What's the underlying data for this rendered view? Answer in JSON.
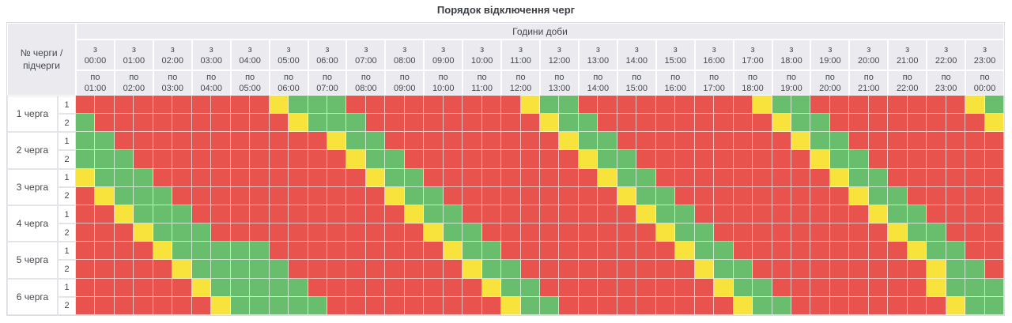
{
  "title": "Порядок відключення черг",
  "colors": {
    "red": "#e8534e",
    "green": "#68be6c",
    "yellow": "#f7e33c",
    "header_bg": "#eaeaef",
    "header_text": "#45494e",
    "table_border": "#dcdee3",
    "grid_line": "#ffffff"
  },
  "header": {
    "corner_lines": [
      "№ черги /",
      "підчерги"
    ],
    "hours_title": "Години доби",
    "from_prefix": "з",
    "to_prefix": "по",
    "columns": [
      {
        "from": "00:00",
        "to": "01:00"
      },
      {
        "from": "01:00",
        "to": "02:00"
      },
      {
        "from": "02:00",
        "to": "03:00"
      },
      {
        "from": "03:00",
        "to": "04:00"
      },
      {
        "from": "04:00",
        "to": "05:00"
      },
      {
        "from": "05:00",
        "to": "06:00"
      },
      {
        "from": "06:00",
        "to": "07:00"
      },
      {
        "from": "07:00",
        "to": "08:00"
      },
      {
        "from": "08:00",
        "to": "09:00"
      },
      {
        "from": "09:00",
        "to": "10:00"
      },
      {
        "from": "10:00",
        "to": "11:00"
      },
      {
        "from": "11:00",
        "to": "12:00"
      },
      {
        "from": "12:00",
        "to": "13:00"
      },
      {
        "from": "13:00",
        "to": "14:00"
      },
      {
        "from": "14:00",
        "to": "15:00"
      },
      {
        "from": "15:00",
        "to": "16:00"
      },
      {
        "from": "16:00",
        "to": "17:00"
      },
      {
        "from": "17:00",
        "to": "18:00"
      },
      {
        "from": "18:00",
        "to": "19:00"
      },
      {
        "from": "19:00",
        "to": "20:00"
      },
      {
        "from": "20:00",
        "to": "21:00"
      },
      {
        "from": "21:00",
        "to": "22:00"
      },
      {
        "from": "22:00",
        "to": "23:00"
      },
      {
        "from": "23:00",
        "to": "00:00"
      }
    ]
  },
  "chart_data": {
    "type": "heatmap",
    "title": "Порядок відключення черг",
    "x_title": "Години доби",
    "slot_minutes": 30,
    "slots_per_day": 48,
    "cell_colors": {
      "R": "#e8534e",
      "G": "#68be6c",
      "Y": "#f7e33c"
    },
    "rows": [
      {
        "queue": "1 черга",
        "subqueue": "1",
        "cells": "RRRRRRRRRRYGGGRRRRRRRRRYGGRRRRRRRRRYGGRRRRRRRRYG"
      },
      {
        "queue": "1 черга",
        "subqueue": "2",
        "cells": "GRRRRRRRRRRYGGGRRRRRRRRRYGGRRRRRRRRRYGGRRRRRRRRY"
      },
      {
        "queue": "2 черга",
        "subqueue": "1",
        "cells": "GGRRRRRRRRRRRYGGRRRRRRRRRYGGRRRRRRRRRYGGRRRRRRRR"
      },
      {
        "queue": "2 черга",
        "subqueue": "2",
        "cells": "GGGRRRRRRRRRRRYGGRRRRRRRRRYGGRRRRRRRRRYGGRRRRRRR"
      },
      {
        "queue": "3 черга",
        "subqueue": "1",
        "cells": "YGGGRRRRRRRRRRRYGGRRRRRRRRRYGGRRRRRRRRRYGGRRRRRR"
      },
      {
        "queue": "3 черга",
        "subqueue": "2",
        "cells": "RYGGGRRRRRRRRRRRYGGRRRRRRRRRYGGRRRRRRRRRYGGRRRRR"
      },
      {
        "queue": "4 черга",
        "subqueue": "1",
        "cells": "RRYGGGRRRRRRRRRRRYGGRRRRRRRRRYGGRRRRRRRRRYGGRRRR"
      },
      {
        "queue": "4 черга",
        "subqueue": "2",
        "cells": "RRRYGGGRRRRRRRRRRRYGGRRRRRRRRRYGGRRRRRRRRRYGGRRR"
      },
      {
        "queue": "5 черга",
        "subqueue": "1",
        "cells": "RRRRYGGGGGRRRRRRRRRYGGRRRRRRRRRYGGRRRRRRRRRYGGRR"
      },
      {
        "queue": "5 черга",
        "subqueue": "2",
        "cells": "RRRRRYGGGGGRRRRRRRRRYGGRRRRRRRRRYGGRRRRRRRRRYGGR"
      },
      {
        "queue": "6 черга",
        "subqueue": "1",
        "cells": "RRRRRRYGGGGGRRRRRRRRRYGGRRRRRRRRRYGGRRRRRRRRYGGG"
      },
      {
        "queue": "6 черга",
        "subqueue": "2",
        "cells": "RRRRRRRYGGGGGRRRRRRRRRYGGRRRRRRRRRYGGRRRRRRRRYGG"
      }
    ]
  }
}
